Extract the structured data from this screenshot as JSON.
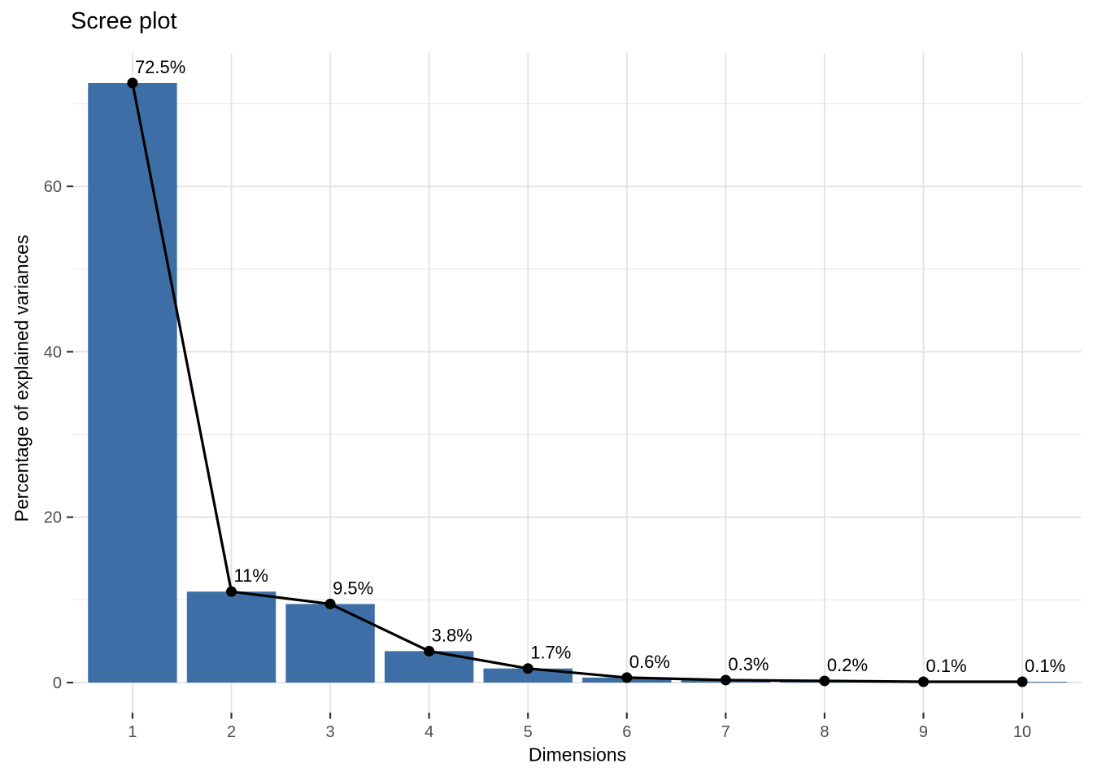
{
  "title": "Scree plot",
  "axes": {
    "x_title": "Dimensions",
    "y_title": "Percentage of explained variances",
    "x_tick_labels": [
      "1",
      "2",
      "3",
      "4",
      "5",
      "6",
      "7",
      "8",
      "9",
      "10"
    ],
    "y_tick_labels": [
      "0",
      "20",
      "40",
      "60"
    ],
    "y_tick_values": [
      0,
      20,
      40,
      60
    ]
  },
  "chart_data": {
    "type": "bar",
    "overlay": "line-with-points",
    "title": "Scree plot",
    "xlabel": "Dimensions",
    "ylabel": "Percentage of explained variances",
    "categories": [
      1,
      2,
      3,
      4,
      5,
      6,
      7,
      8,
      9,
      10
    ],
    "values": [
      72.5,
      11,
      9.5,
      3.8,
      1.7,
      0.6,
      0.3,
      0.2,
      0.1,
      0.1
    ],
    "point_labels": [
      "72.5%",
      "11%",
      "9.5%",
      "3.8%",
      "1.7%",
      "0.6%",
      "0.3%",
      "0.2%",
      "0.1%",
      "0.1%"
    ],
    "y_major_gridlines": [
      0,
      20,
      40,
      60
    ],
    "y_minor_gridlines": [
      10,
      30,
      50,
      70
    ],
    "ylim": [
      -3.64,
      76.14
    ],
    "grid": true,
    "legend": false
  },
  "style": {
    "bar_fill": "#3D6FA6",
    "line_color": "#000000",
    "point_color": "#000000",
    "value_label_color": "#000000",
    "title_color": "#000000",
    "axis_title_color": "#000000",
    "tick_label_color": "#4D4D4D",
    "tick_mark_color": "#333333",
    "grid_major_color": "#E4E4E4",
    "grid_minor_color": "#ECECEC",
    "background": "#FFFFFF"
  }
}
